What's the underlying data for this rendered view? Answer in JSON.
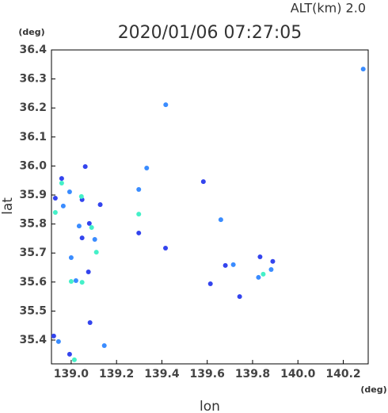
{
  "chart_data": {
    "type": "scatter",
    "title": "2020/01/06 07:27:05",
    "subtitle": "ALT(km)  2.0",
    "y_unit": "(deg)",
    "x_unit": "(deg)",
    "y_label": "lat",
    "x_label": "lon",
    "xlim": [
      138.913,
      140.31
    ],
    "ylim": [
      35.318,
      36.4
    ],
    "xticks": [
      {
        "value": 139.0,
        "label": "139.0"
      },
      139.2,
      139.4,
      139.6,
      139.8,
      {
        "value": 140.0,
        "label": "140.0"
      },
      140.2
    ],
    "yticks": [
      35.4,
      35.5,
      35.6,
      35.7,
      35.8,
      35.9,
      {
        "value": 36.0,
        "label": "36.0"
      },
      36.1,
      36.2,
      36.3,
      36.4
    ],
    "series": [
      {
        "color": "#3344ee",
        "x": [
          138.958,
          139.048,
          139.048,
          139.08,
          139.076,
          139.083,
          138.923,
          138.993,
          139.614,
          139.833,
          139.416,
          139.583,
          139.062,
          139.128,
          138.93,
          139.743,
          139.68,
          139.889,
          139.298
        ],
        "values": [
          35.957,
          35.884,
          35.752,
          35.802,
          35.635,
          35.46,
          35.414,
          35.351,
          35.594,
          35.687,
          35.717,
          35.946,
          35.998,
          35.867,
          35.889,
          35.55,
          35.657,
          35.671,
          35.769
        ]
      },
      {
        "color": "#3a8cff",
        "x": [
          138.965,
          138.993,
          139.035,
          139.0,
          139.104,
          139.021,
          139.146,
          138.944,
          139.882,
          139.826,
          139.417,
          139.333,
          139.298,
          140.288,
          139.715,
          139.66
        ],
        "values": [
          35.862,
          35.911,
          35.793,
          35.684,
          35.747,
          35.605,
          35.381,
          35.395,
          35.643,
          35.616,
          36.211,
          35.993,
          35.919,
          36.334,
          35.66,
          35.815
        ]
      },
      {
        "color": "#44f0c8",
        "x": [
          138.958,
          138.93,
          139.045,
          139.0,
          139.048,
          139.014,
          139.09,
          139.847,
          139.298,
          139.111
        ],
        "values": [
          35.941,
          35.84,
          35.895,
          35.602,
          35.599,
          35.332,
          35.788,
          35.627,
          35.834,
          35.703
        ]
      }
    ]
  }
}
